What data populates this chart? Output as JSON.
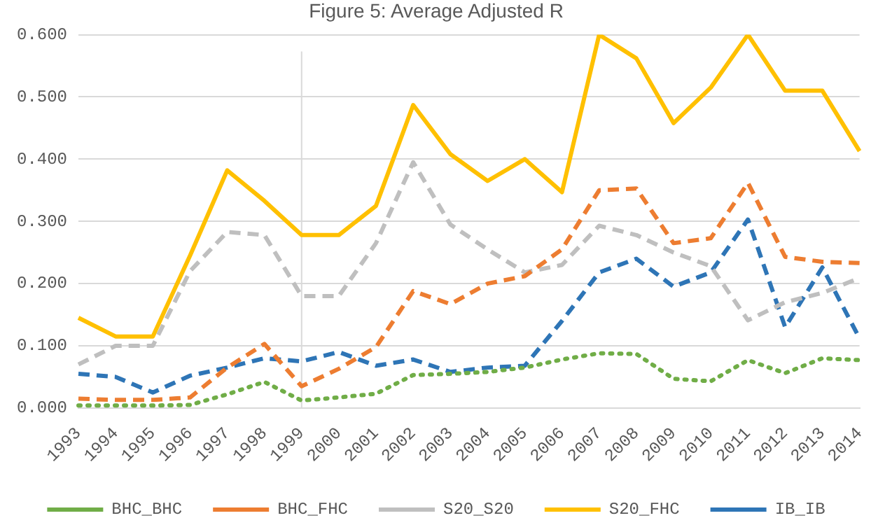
{
  "chart_data": {
    "type": "line",
    "title": "Figure 5: Average Adjusted R",
    "categories": [
      "1993",
      "1994",
      "1995",
      "1996",
      "1997",
      "1998",
      "1999",
      "2000",
      "2001",
      "2002",
      "2003",
      "2004",
      "2005",
      "2006",
      "2007",
      "2008",
      "2009",
      "2010",
      "2011",
      "2012",
      "2013",
      "2014"
    ],
    "series": [
      {
        "name": "BHC_BHC",
        "color": "#70ad47",
        "line_style": "dotted",
        "values": [
          0.004,
          0.004,
          0.004,
          0.005,
          0.022,
          0.042,
          0.012,
          0.017,
          0.023,
          0.053,
          0.055,
          0.058,
          0.065,
          0.078,
          0.088,
          0.087,
          0.047,
          0.043,
          0.077,
          0.056,
          0.08,
          0.077
        ]
      },
      {
        "name": "BHC_FHC",
        "color": "#ed7d31",
        "line_style": "dashed",
        "values": [
          0.015,
          0.013,
          0.013,
          0.017,
          0.065,
          0.103,
          0.035,
          0.063,
          0.098,
          0.188,
          0.167,
          0.2,
          0.212,
          0.255,
          0.35,
          0.353,
          0.265,
          0.273,
          0.362,
          0.243,
          0.235,
          0.233
        ]
      },
      {
        "name": "S20_S20",
        "color": "#bfbfbf",
        "line_style": "dashed",
        "values": [
          0.07,
          0.1,
          0.1,
          0.22,
          0.283,
          0.278,
          0.18,
          0.18,
          0.265,
          0.395,
          0.295,
          0.255,
          0.218,
          0.23,
          0.293,
          0.278,
          0.25,
          0.228,
          0.141,
          0.17,
          0.185,
          0.209
        ]
      },
      {
        "name": "S20_FHC",
        "color": "#ffc000",
        "line_style": "solid",
        "values": [
          0.145,
          0.115,
          0.115,
          0.245,
          0.382,
          0.333,
          0.278,
          0.278,
          0.325,
          0.487,
          0.408,
          0.365,
          0.4,
          0.347,
          0.6,
          0.562,
          0.458,
          0.515,
          0.6,
          0.51,
          0.51,
          0.413
        ]
      },
      {
        "name": "IB_IB",
        "color": "#2e75b6",
        "line_style": "dashed",
        "values": [
          0.055,
          0.05,
          0.025,
          0.052,
          0.065,
          0.08,
          0.075,
          0.09,
          0.068,
          0.078,
          0.058,
          0.065,
          0.068,
          0.14,
          0.218,
          0.24,
          0.195,
          0.218,
          0.303,
          0.13,
          0.226,
          0.112
        ]
      }
    ],
    "ylim": [
      0,
      0.6
    ],
    "yticks": [
      {
        "value": 0,
        "label": "0.000"
      },
      {
        "value": 0.1,
        "label": "0.100"
      },
      {
        "value": 0.2,
        "label": "0.200"
      },
      {
        "value": 0.3,
        "label": "0.300"
      },
      {
        "value": 0.4,
        "label": "0.400"
      },
      {
        "value": 0.5,
        "label": "0.500"
      },
      {
        "value": 0.6,
        "label": "0.600"
      }
    ],
    "ref_lines": [
      {
        "axis": "x",
        "value": "1999",
        "color": "#d9d9d9"
      }
    ],
    "grid": "y",
    "legend": "bottom",
    "marker": "none"
  }
}
